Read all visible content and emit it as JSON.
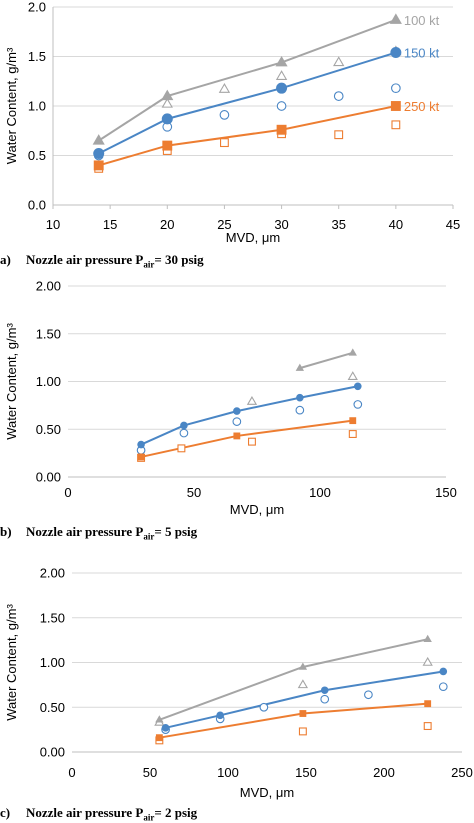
{
  "colors": {
    "gray": "#a5a5a5",
    "blue": "#4a86c5",
    "orange": "#ed7d31",
    "grid": "#d9d9d9",
    "axis": "#bfbfbf",
    "text": "#404040"
  },
  "chart_data": [
    {
      "type": "scatter",
      "panel_label": "a)",
      "caption_prefix": "Nozzle air pressure P",
      "caption_sub": "air",
      "caption_suffix": "= 30 psig",
      "xlabel": "MVD, μm",
      "ylabel": "Water Content, g/m³",
      "xlim": [
        10,
        45
      ],
      "ylim": [
        0,
        2
      ],
      "xticks": [
        10,
        15,
        20,
        25,
        30,
        35,
        40,
        45
      ],
      "yticks": [
        0,
        0.5,
        1,
        1.5,
        2
      ],
      "xtick_labels": [
        "10",
        "15",
        "20",
        "25",
        "30",
        "35",
        "40",
        "45"
      ],
      "ytick_labels": [
        "0.0",
        "0.5",
        "1.0",
        "1.5",
        "2.0"
      ],
      "grid": "horizontal",
      "series": [
        {
          "name": "100 kt",
          "color": "gray",
          "marker": "triangle",
          "line": {
            "x": [
              14,
              20,
              30,
              40
            ],
            "y": [
              0.65,
              1.1,
              1.44,
              1.87
            ]
          },
          "open": {
            "x": [
              20,
              25,
              30,
              35,
              40
            ],
            "y": [
              1.02,
              1.17,
              1.3,
              1.44,
              1.55
            ]
          }
        },
        {
          "name": "150 kt",
          "color": "blue",
          "marker": "circle",
          "line": {
            "x": [
              14,
              20,
              30,
              40
            ],
            "y": [
              0.52,
              0.87,
              1.18,
              1.54
            ]
          },
          "open": {
            "x": [
              14,
              20,
              25,
              30,
              35,
              40
            ],
            "y": [
              0.5,
              0.79,
              0.91,
              1.0,
              1.1,
              1.18
            ]
          }
        },
        {
          "name": "250 kt",
          "color": "orange",
          "marker": "square",
          "line": {
            "x": [
              14,
              20,
              30,
              40
            ],
            "y": [
              0.4,
              0.6,
              0.76,
              1.0
            ]
          },
          "open": {
            "x": [
              14,
              20,
              25,
              30,
              35,
              40
            ],
            "y": [
              0.37,
              0.55,
              0.63,
              0.72,
              0.71,
              0.81
            ]
          }
        }
      ]
    },
    {
      "type": "scatter",
      "panel_label": "b)",
      "caption_prefix": "Nozzle air pressure P",
      "caption_sub": "air",
      "caption_suffix": "= 5 psig",
      "xlabel": "MVD, μm",
      "ylabel": "Water Content, g/m³",
      "xlim": [
        0,
        150
      ],
      "ylim": [
        0,
        2
      ],
      "xticks": [
        0,
        50,
        100,
        150
      ],
      "yticks": [
        0,
        0.5,
        1,
        1.5,
        2
      ],
      "xtick_labels": [
        "0",
        "50",
        "100",
        "150"
      ],
      "ytick_labels": [
        "0.00",
        "0.50",
        "1.00",
        "1.50",
        "2.00"
      ],
      "grid": "horizontal",
      "series": [
        {
          "name": "",
          "color": "gray",
          "marker": "triangle",
          "line": {
            "x": [
              92,
              113
            ],
            "y": [
              1.14,
              1.3
            ]
          },
          "open": {
            "x": [
              73,
              113
            ],
            "y": [
              0.79,
              1.05
            ]
          }
        },
        {
          "name": "",
          "color": "blue",
          "marker": "circle",
          "line": {
            "x": [
              29,
              46,
              67,
              92,
              115
            ],
            "y": [
              0.34,
              0.54,
              0.69,
              0.83,
              0.95
            ]
          },
          "open": {
            "x": [
              29,
              46,
              67,
              92,
              115
            ],
            "y": [
              0.28,
              0.46,
              0.58,
              0.7,
              0.76
            ]
          }
        },
        {
          "name": "",
          "color": "orange",
          "marker": "square",
          "line": {
            "x": [
              29,
              67,
              113
            ],
            "y": [
              0.21,
              0.43,
              0.59
            ]
          },
          "open": {
            "x": [
              29,
              45,
              73,
              113
            ],
            "y": [
              0.2,
              0.3,
              0.37,
              0.45
            ]
          }
        }
      ]
    },
    {
      "type": "scatter",
      "panel_label": "c)",
      "caption_prefix": "Nozzle air pressure P",
      "caption_sub": "air",
      "caption_suffix": "= 2 psig",
      "xlabel": "MVD, μm",
      "ylabel": "Water Content, g/m³",
      "xlim": [
        0,
        250
      ],
      "ylim": [
        0,
        2
      ],
      "xticks": [
        0,
        50,
        100,
        150,
        200,
        250
      ],
      "yticks": [
        0,
        0.5,
        1,
        1.5,
        2
      ],
      "xtick_labels": [
        "0",
        "50",
        "100",
        "150",
        "200",
        "250"
      ],
      "ytick_labels": [
        "0.00",
        "0.50",
        "1.00",
        "1.50",
        "2.00"
      ],
      "grid": "horizontal",
      "series": [
        {
          "name": "",
          "color": "gray",
          "marker": "triangle",
          "line": {
            "x": [
              56,
              148,
              228
            ],
            "y": [
              0.36,
              0.95,
              1.26
            ]
          },
          "open": {
            "x": [
              56,
              148,
              228
            ],
            "y": [
              0.33,
              0.75,
              1.0
            ]
          }
        },
        {
          "name": "",
          "color": "blue",
          "marker": "circle",
          "line": {
            "x": [
              60,
              95,
              162,
              238
            ],
            "y": [
              0.27,
              0.41,
              0.69,
              0.9
            ]
          },
          "open": {
            "x": [
              60,
              95,
              123,
              162,
              190,
              238
            ],
            "y": [
              0.25,
              0.37,
              0.5,
              0.59,
              0.64,
              0.73
            ]
          }
        },
        {
          "name": "",
          "color": "orange",
          "marker": "square",
          "line": {
            "x": [
              56,
              148,
              228
            ],
            "y": [
              0.16,
              0.43,
              0.54
            ]
          },
          "open": {
            "x": [
              56,
              148,
              228
            ],
            "y": [
              0.13,
              0.23,
              0.29
            ]
          }
        }
      ]
    }
  ]
}
